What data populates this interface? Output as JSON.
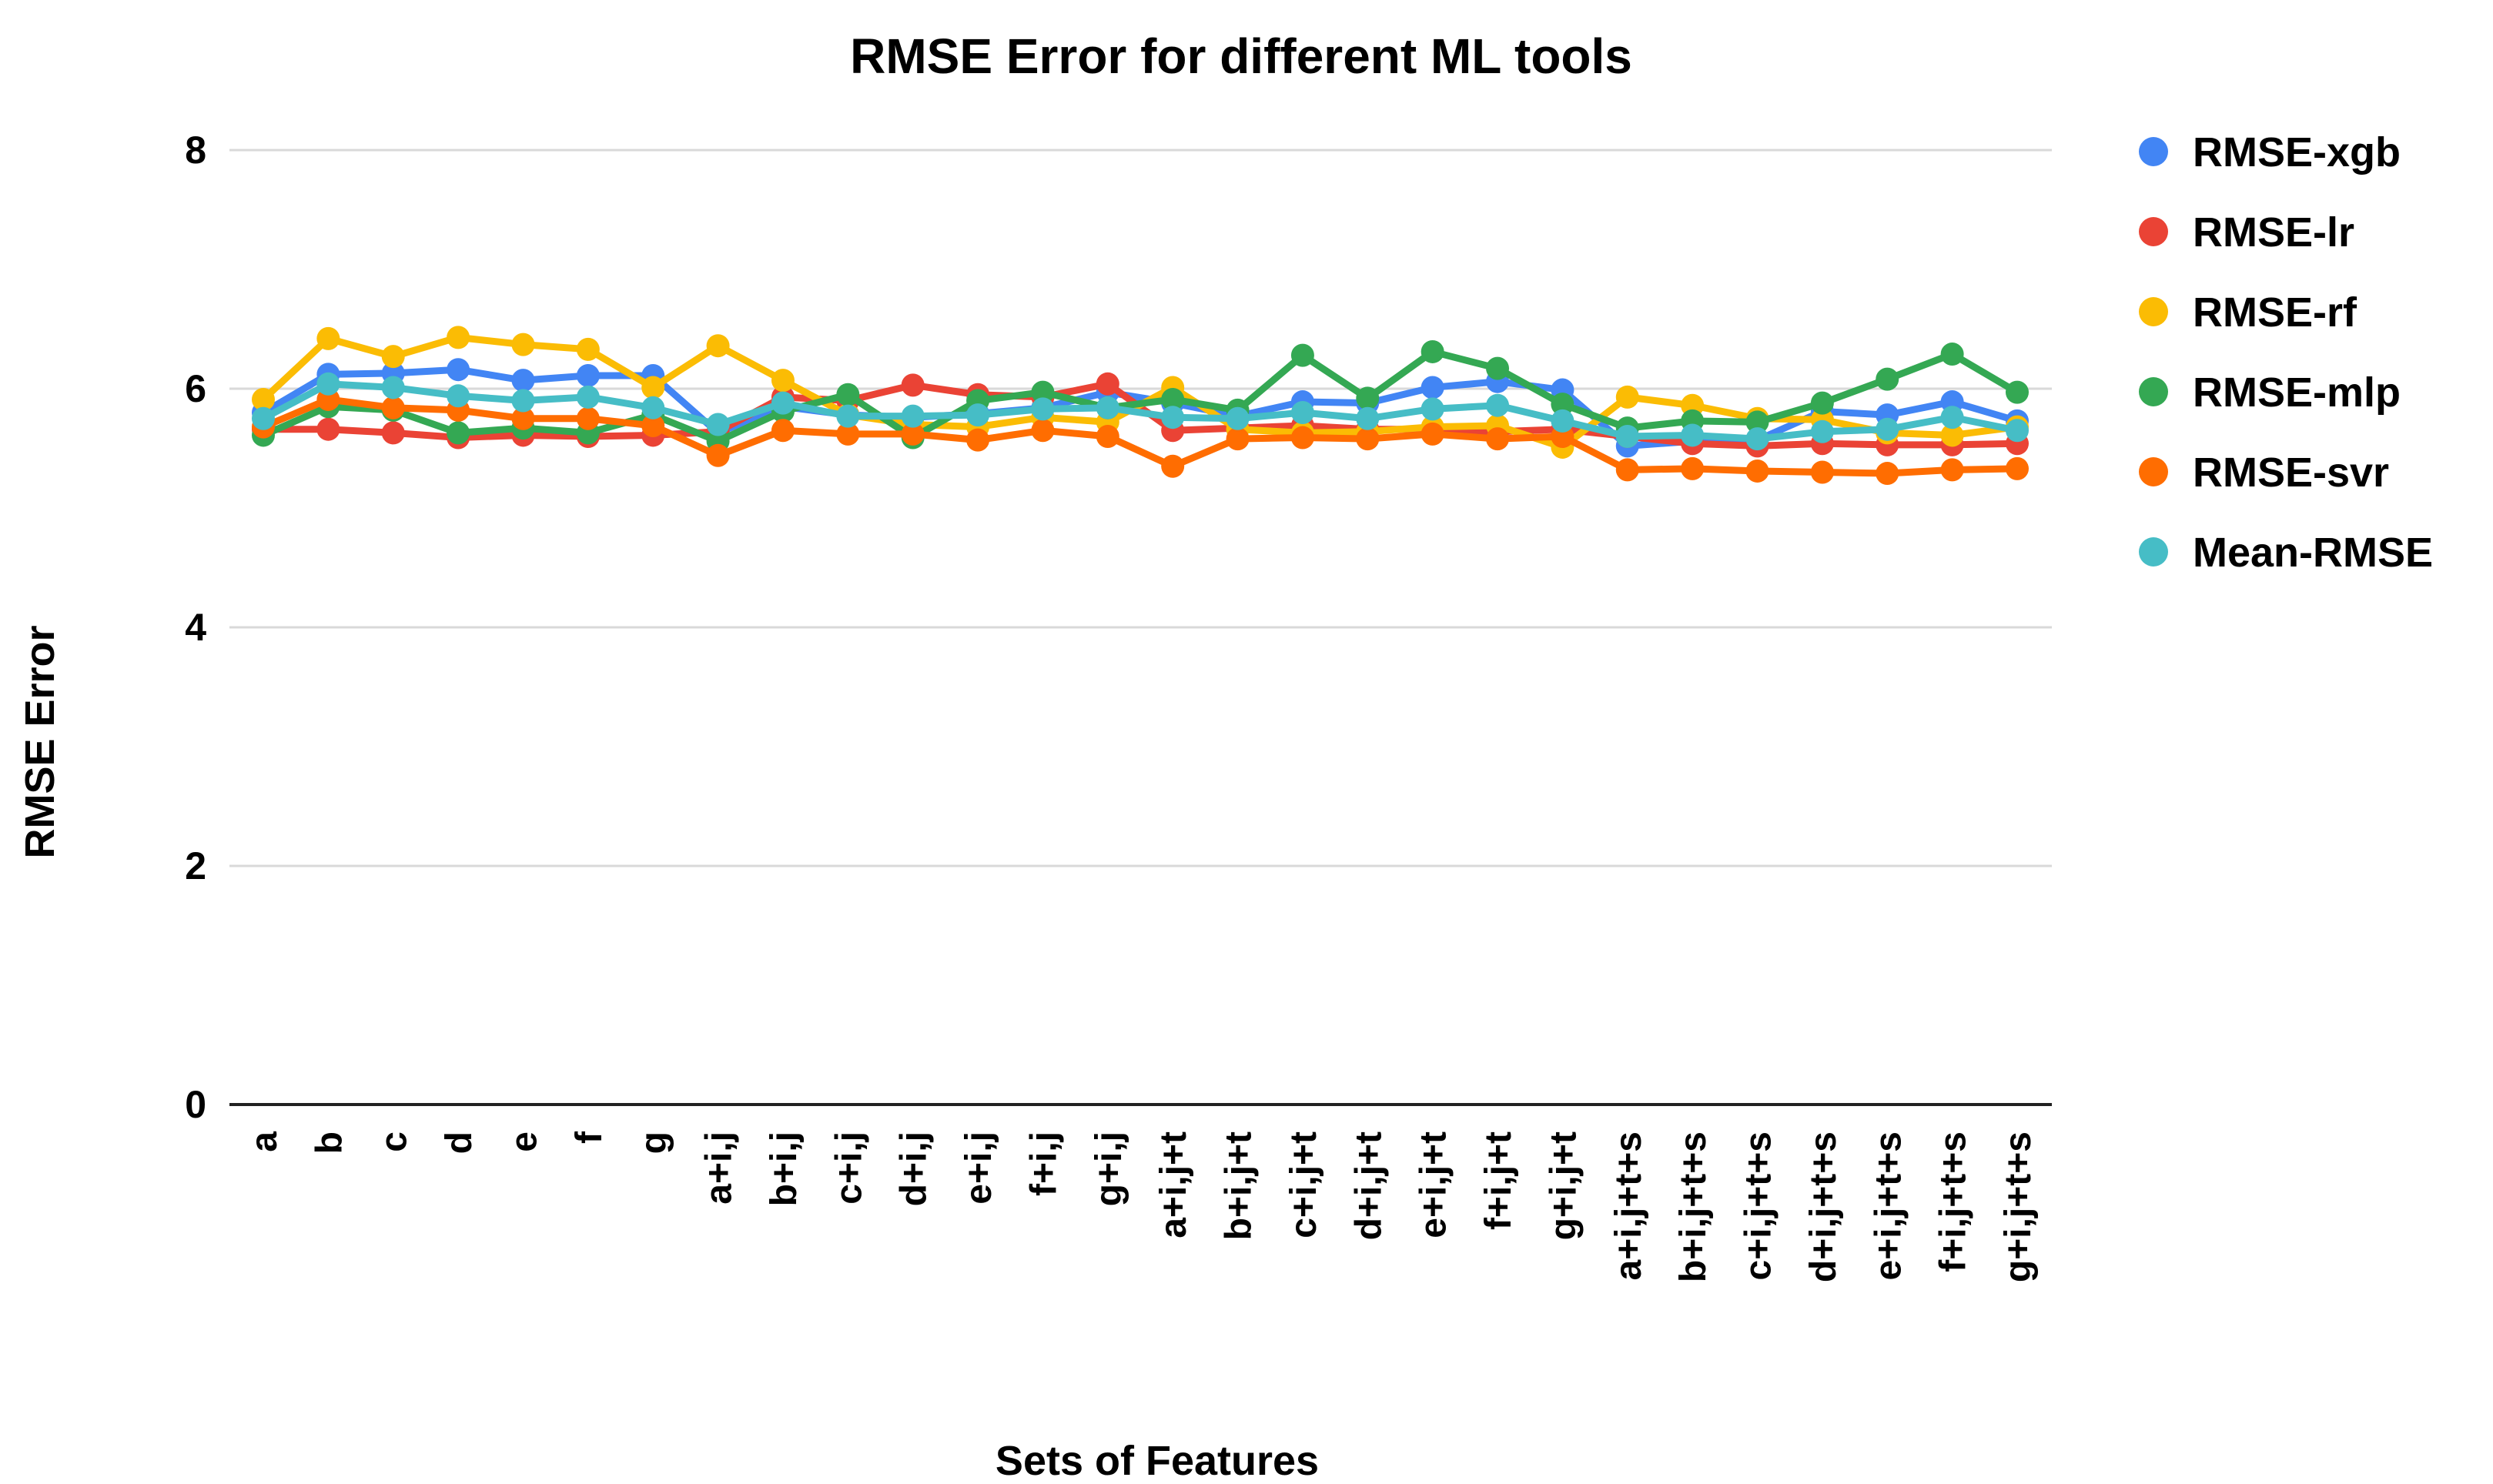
{
  "chart_data": {
    "type": "line",
    "title": "RMSE Error for different ML tools",
    "xlabel": "Sets of Features",
    "ylabel": "RMSE Error",
    "ylim": [
      0,
      8
    ],
    "yticks": [
      0,
      2,
      4,
      6,
      8
    ],
    "grid": true,
    "legend_position": "right",
    "marker": "circle",
    "categories": [
      "a",
      "b",
      "c",
      "d",
      "e",
      "f",
      "g",
      "a+i,j",
      "b+i,j",
      "c+i,j",
      "d+i,j",
      "e+i,j",
      "f+i,j",
      "g+i,j",
      "a+i,j+t",
      "b+i,j+t",
      "c+i,j+t",
      "d+i,j+t",
      "e+i,j+t",
      "f+i,j+t",
      "g+i,j+t",
      "a+i,j+t+s",
      "b+i,j+t+s",
      "c+i,j+t+s",
      "d+i,j+t+s",
      "e+i,j+t+s",
      "f+i,j+t+s",
      "g+i,j+t+s"
    ],
    "series": [
      {
        "name": "RMSE-xgb",
        "color": "#4285F4",
        "values": [
          5.8,
          6.12,
          6.13,
          6.16,
          6.07,
          6.11,
          6.11,
          5.63,
          5.85,
          5.78,
          5.76,
          5.79,
          5.84,
          5.97,
          5.88,
          5.77,
          5.89,
          5.88,
          6.01,
          6.06,
          5.99,
          5.52,
          5.56,
          5.57,
          5.81,
          5.78,
          5.89,
          5.73
        ]
      },
      {
        "name": "RMSE-lr",
        "color": "#EA4335",
        "values": [
          5.66,
          5.66,
          5.63,
          5.59,
          5.61,
          5.6,
          5.61,
          5.64,
          5.93,
          5.9,
          6.03,
          5.95,
          5.93,
          6.04,
          5.65,
          5.67,
          5.69,
          5.66,
          5.66,
          5.64,
          5.66,
          5.6,
          5.54,
          5.52,
          5.54,
          5.53,
          5.53,
          5.54
        ]
      },
      {
        "name": "RMSE-rf",
        "color": "#FBBC04",
        "values": [
          5.91,
          6.42,
          6.27,
          6.43,
          6.37,
          6.33,
          6.01,
          6.36,
          6.07,
          5.78,
          5.7,
          5.68,
          5.76,
          5.72,
          6.01,
          5.66,
          5.63,
          5.64,
          5.68,
          5.69,
          5.51,
          5.93,
          5.86,
          5.75,
          5.74,
          5.63,
          5.61,
          5.68
        ]
      },
      {
        "name": "RMSE-mlp",
        "color": "#34A853",
        "values": [
          5.61,
          5.85,
          5.82,
          5.63,
          5.67,
          5.63,
          5.78,
          5.56,
          5.81,
          5.95,
          5.59,
          5.9,
          5.97,
          5.84,
          5.91,
          5.82,
          6.28,
          5.92,
          6.31,
          6.17,
          5.87,
          5.67,
          5.73,
          5.72,
          5.88,
          6.08,
          6.29,
          5.97
        ]
      },
      {
        "name": "RMSE-svr",
        "color": "#FF6D01",
        "values": [
          5.68,
          5.91,
          5.84,
          5.82,
          5.75,
          5.75,
          5.69,
          5.44,
          5.65,
          5.62,
          5.62,
          5.57,
          5.65,
          5.6,
          5.35,
          5.58,
          5.59,
          5.58,
          5.62,
          5.58,
          5.6,
          5.32,
          5.33,
          5.31,
          5.3,
          5.29,
          5.32,
          5.33
        ]
      },
      {
        "name": "Mean-RMSE",
        "color": "#46BDC6",
        "values": [
          5.75,
          6.04,
          6.01,
          5.94,
          5.9,
          5.93,
          5.84,
          5.7,
          5.88,
          5.77,
          5.77,
          5.78,
          5.83,
          5.84,
          5.76,
          5.75,
          5.8,
          5.75,
          5.83,
          5.86,
          5.73,
          5.6,
          5.61,
          5.58,
          5.64,
          5.66,
          5.76,
          5.65
        ]
      }
    ],
    "style": {
      "grid_color": "#D9D9D9",
      "axis_color": "#212121",
      "background": "#FFFFFF"
    }
  }
}
